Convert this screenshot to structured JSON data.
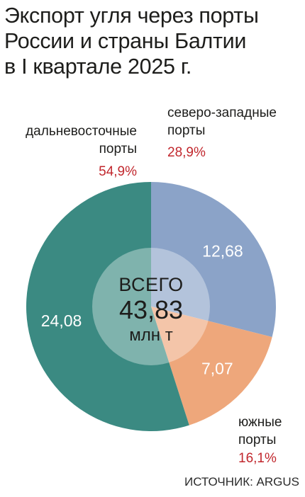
{
  "title": {
    "line1": "Экспорт угля через порты",
    "line2": "России и страны Балтии",
    "line3": "в I квартале 2025 г."
  },
  "chart_data": {
    "type": "pie",
    "title": "Экспорт угля через порты России и страны Балтии в I квартале 2025 г.",
    "unit": "млн т",
    "total": {
      "label": "ВСЕГО",
      "value": "43,83",
      "unit": "млн т"
    },
    "slices": [
      {
        "name_line1": "северо-западные",
        "name_line2": "порты",
        "value": 12.68,
        "value_label": "12,68",
        "percent": "28,9%",
        "color": "#8ba3c8"
      },
      {
        "name_line1": "южные",
        "name_line2": "порты",
        "value": 7.07,
        "value_label": "7,07",
        "percent": "16,1%",
        "color": "#eea77b"
      },
      {
        "name_line1": "дальневосточные",
        "name_line2": "порты",
        "value": 24.08,
        "value_label": "24,08",
        "percent": "54,9%",
        "color": "#3b8a82"
      }
    ],
    "center_circle_color": "#ffffff"
  },
  "source": "ИСТОЧНИК: ARGUS",
  "colors": {
    "accent_percent": "#c1272d",
    "text": "#1d1d1b"
  }
}
